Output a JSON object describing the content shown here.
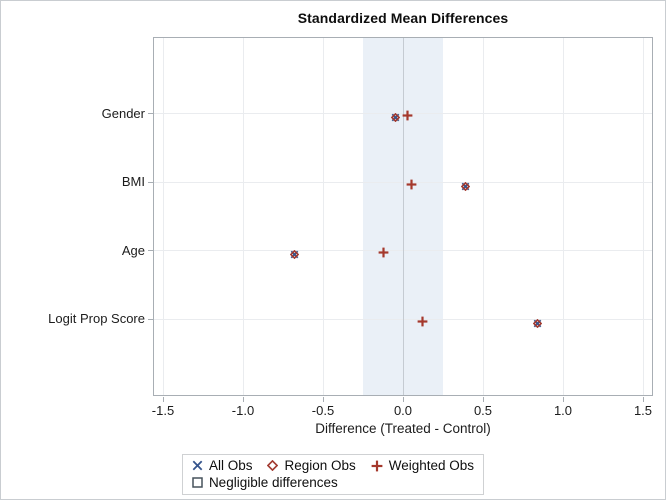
{
  "chart_data": {
    "type": "scatter",
    "orientation": "horizontal",
    "title": "Standardized Mean Differences",
    "xlabel": "Difference (Treated - Control)",
    "ylabel": "",
    "xlim": [
      -1.5,
      1.5
    ],
    "x_ticks": [
      -1.5,
      -1.0,
      -0.5,
      0.0,
      0.5,
      1.0,
      1.5
    ],
    "x_tick_labels": [
      "-1.5",
      "-1.0",
      "-0.5",
      "0.0",
      "0.5",
      "1.0",
      "1.5"
    ],
    "categories": [
      "Gender",
      "BMI",
      "Age",
      "Logit Prop Score"
    ],
    "series": [
      {
        "name": "All Obs",
        "marker": "x",
        "color": "#35548C",
        "size": 9,
        "values": [
          -0.05,
          0.39,
          -0.68,
          0.84
        ]
      },
      {
        "name": "Region Obs",
        "marker": "diamond",
        "color": "#A23A30",
        "size": 9,
        "values": [
          -0.05,
          0.39,
          -0.68,
          0.84
        ]
      },
      {
        "name": "Weighted Obs",
        "marker": "plus",
        "color": "#A5382C",
        "size": 11,
        "values": [
          0.03,
          0.05,
          -0.12,
          0.12
        ]
      }
    ],
    "band": {
      "label": "Negligible differences",
      "range": [
        -0.25,
        0.25
      ],
      "fill": "#EAF0F7"
    },
    "reference_line_x": 0,
    "grid": true,
    "legend_position": "bottom",
    "legend_items": [
      {
        "label": "All Obs",
        "marker": "x",
        "color": "#35548C",
        "row": 0
      },
      {
        "label": "Region Obs",
        "marker": "diamond",
        "color": "#A23A30",
        "row": 0
      },
      {
        "label": "Weighted Obs",
        "marker": "plus",
        "color": "#A5382C",
        "row": 0
      },
      {
        "label": "Negligible differences",
        "marker": "square",
        "color": "#47525B",
        "row": 1
      }
    ],
    "colors": {
      "frame": "#A8AEB4",
      "gridline": "#EAECEF",
      "reference_line": "#C5CBD2",
      "band_fill": "#EAF0F7"
    }
  }
}
